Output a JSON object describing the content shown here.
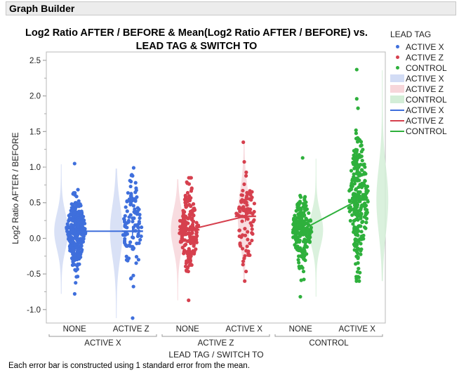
{
  "header": {
    "title": "Graph Builder"
  },
  "chart_data": {
    "type": "scatter",
    "title": "Log2 Ratio AFTER / BEFORE & Mean(Log2 Ratio AFTER / BEFORE) vs. LEAD TAG & SWITCH TO",
    "ylabel": "Log2 Ratio AFTER / BEFORE",
    "xlabel": "LEAD TAG / SWITCH TO",
    "ylim": [
      -1.1,
      2.6
    ],
    "yticks": [
      "2.5",
      "2.0",
      "1.5",
      "1.0",
      "0.5",
      "0.0",
      "-0.5",
      "-1.0"
    ],
    "ytick_values": [
      2.5,
      2.0,
      1.5,
      1.0,
      0.5,
      0.0,
      -0.5,
      -1.0
    ],
    "groups": [
      {
        "label": "ACTIVE X",
        "color": "#3F6FDC",
        "fill": "#D2DCF5",
        "categories": [
          {
            "label": "NONE",
            "mean": 0.1,
            "sd": 0.25,
            "min": -0.78,
            "max": 1.05
          },
          {
            "label": "ACTIVE Z",
            "mean": 0.1,
            "sd": 0.36,
            "min": -1.12,
            "max": 0.99
          }
        ]
      },
      {
        "label": "ACTIVE Z",
        "color": "#D6404E",
        "fill": "#F7D6DA",
        "categories": [
          {
            "label": "NONE",
            "mean": 0.12,
            "sd": 0.27,
            "min": -0.87,
            "max": 0.85
          },
          {
            "label": "ACTIVE X",
            "mean": 0.31,
            "sd": 0.36,
            "min": -0.6,
            "max": 1.35
          }
        ]
      },
      {
        "label": "CONTROL",
        "color": "#2EB03C",
        "fill": "#D3EED7",
        "categories": [
          {
            "label": "NONE",
            "mean": 0.12,
            "sd": 0.24,
            "min": -0.82,
            "max": 1.13
          },
          {
            "label": "ACTIVE X",
            "mean": 0.54,
            "sd": 0.45,
            "min": -0.6,
            "max": 2.37
          }
        ]
      }
    ],
    "legend": {
      "title": "LEAD TAG",
      "placement": "right",
      "points": [
        "ACTIVE X",
        "ACTIVE Z",
        "CONTROL"
      ],
      "contours": [
        "ACTIVE X",
        "ACTIVE Z",
        "CONTROL"
      ],
      "lines": [
        "ACTIVE X",
        "ACTIVE Z",
        "CONTROL"
      ]
    },
    "footnote": "Each error bar is constructed using 1 standard error from the mean."
  }
}
